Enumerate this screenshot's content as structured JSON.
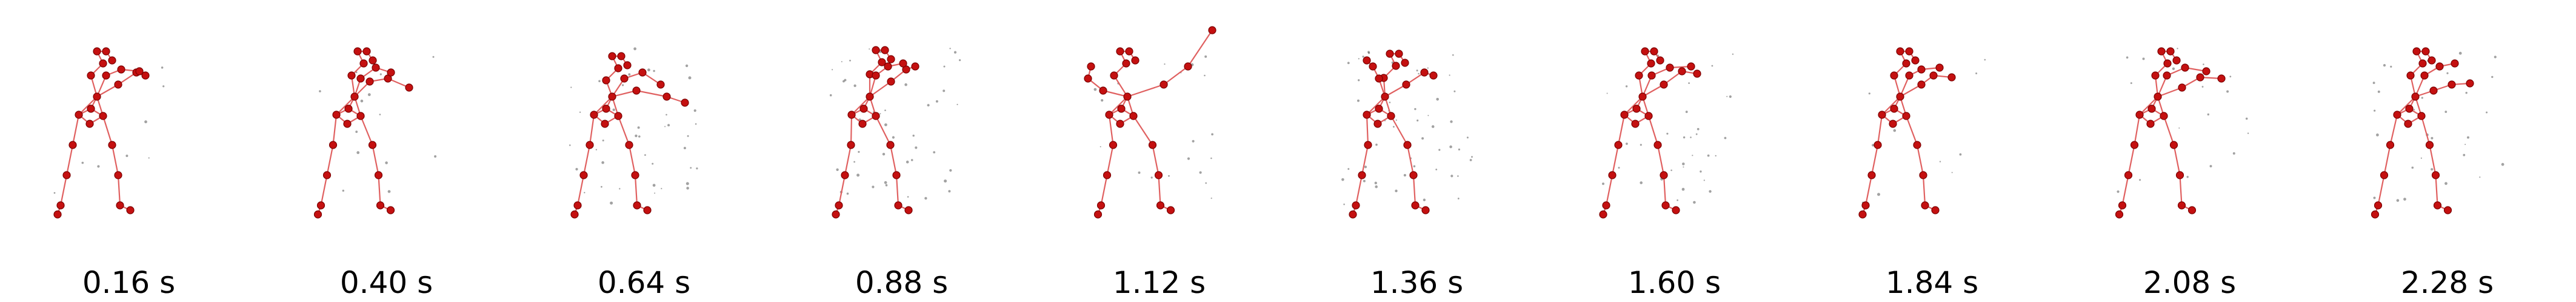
{
  "figure": {
    "frames": [
      {
        "time_label": "0.16 s"
      },
      {
        "time_label": "0.40 s"
      },
      {
        "time_label": "0.64 s"
      },
      {
        "time_label": "0.88 s"
      },
      {
        "time_label": "1.12 s"
      },
      {
        "time_label": "1.36 s"
      },
      {
        "time_label": "1.60 s"
      },
      {
        "time_label": "1.84 s"
      },
      {
        "time_label": "2.08 s"
      },
      {
        "time_label": "2.28 s"
      }
    ]
  },
  "colors": {
    "joint_fill": "#c41010",
    "joint_stroke": "#7a0000",
    "bone": "#e06060",
    "trail": "#555555",
    "label": "#000000"
  }
}
